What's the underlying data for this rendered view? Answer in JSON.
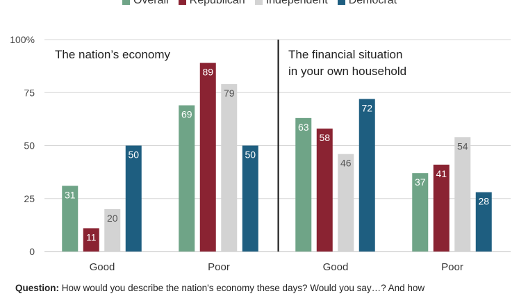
{
  "legend": [
    {
      "name": "Overall",
      "color": "#6fa487"
    },
    {
      "name": "Republican",
      "color": "#8a2332"
    },
    {
      "name": "Independent",
      "color": "#d3d3d3"
    },
    {
      "name": "Democrat",
      "color": "#1e5e80"
    }
  ],
  "question": {
    "label": "Question:",
    "text": "How would you describe the nation's economy these days? Would you say…? And how"
  },
  "chart_data": {
    "type": "bar",
    "ylim": [
      0,
      100
    ],
    "yticks": [
      {
        "value": 0,
        "label": "0"
      },
      {
        "value": 25,
        "label": "25"
      },
      {
        "value": 50,
        "label": "50"
      },
      {
        "value": 75,
        "label": "75"
      },
      {
        "value": 100,
        "label": "100%"
      }
    ],
    "grid": true,
    "legend_placement": "top",
    "series_names": [
      "Overall",
      "Republican",
      "Independent",
      "Democrat"
    ],
    "panels": [
      {
        "title": [
          "The nation’s economy"
        ],
        "categories": [
          {
            "label": "Good",
            "values": [
              31,
              11,
              20,
              50
            ]
          },
          {
            "label": "Poor",
            "values": [
              69,
              89,
              79,
              50
            ]
          }
        ]
      },
      {
        "title": [
          "The financial situation",
          "in your own household"
        ],
        "categories": [
          {
            "label": "Good",
            "values": [
              63,
              58,
              46,
              72
            ]
          },
          {
            "label": "Poor",
            "values": [
              37,
              41,
              54,
              28
            ]
          }
        ]
      }
    ]
  }
}
